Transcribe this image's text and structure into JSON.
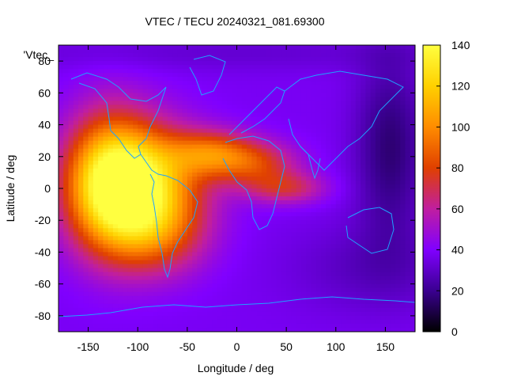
{
  "chart_data": {
    "type": "heatmap",
    "title": "VTEC / TECU 20240321_081.69300",
    "key_label": "'Vtec_",
    "xlabel": "Longitude / deg",
    "ylabel": "Latitude / deg",
    "xlim": [
      -180,
      180
    ],
    "ylim": [
      -90,
      90
    ],
    "x_ticks": [
      -150,
      -100,
      -50,
      0,
      50,
      100,
      150
    ],
    "y_ticks": [
      -80,
      -60,
      -40,
      -20,
      0,
      20,
      40,
      60,
      80
    ],
    "colorbar": {
      "range": [
        0,
        140
      ],
      "ticks": [
        0,
        20,
        40,
        60,
        80,
        100,
        120,
        140
      ],
      "palette": [
        "#000000",
        "#3a0090",
        "#8000ff",
        "#c01ea0",
        "#e04000",
        "#ff8c00",
        "#ffd000",
        "#ffff40"
      ],
      "palette_stops": [
        0,
        20,
        40,
        60,
        80,
        100,
        120,
        140
      ]
    },
    "grid": false,
    "features": {
      "background_tec": 38,
      "peak": {
        "lon": -100,
        "lat": 0,
        "value": 138
      },
      "northern_crest": {
        "lon": -25,
        "lat": 22,
        "value": 112
      },
      "african_tongue": {
        "lon": 50,
        "lat": 0,
        "value": 75
      },
      "night_minimum": {
        "lon": 155,
        "lat": 25,
        "value": 15
      }
    }
  }
}
